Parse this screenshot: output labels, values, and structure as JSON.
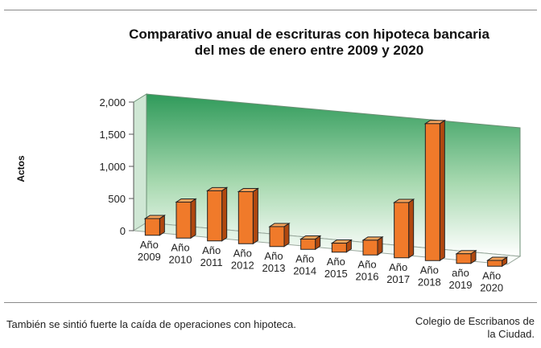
{
  "chart_data": {
    "type": "bar",
    "title_lines": [
      "Comparativo anual de escrituras con hipoteca bancaria",
      "del mes de enero entre 2009 y 2020"
    ],
    "ylabel": "Actos",
    "xlabel": "",
    "ylim": [
      0,
      2000
    ],
    "yticks": [
      "0",
      "500",
      "1,000",
      "1,500",
      "2,000"
    ],
    "ytick_values": [
      0,
      500,
      1000,
      1500,
      2000
    ],
    "categories": [
      [
        "Año",
        "2009"
      ],
      [
        "Año",
        "2010"
      ],
      [
        "Año",
        "2011"
      ],
      [
        "Año",
        "2012"
      ],
      [
        "Año",
        "2013"
      ],
      [
        "Año",
        "2014"
      ],
      [
        "Año",
        "2015"
      ],
      [
        "Año",
        "2016"
      ],
      [
        "Año",
        "2017"
      ],
      [
        "Año",
        "2018"
      ],
      [
        "año",
        "2019"
      ],
      [
        "Año",
        "2020"
      ]
    ],
    "values": [
      260,
      560,
      780,
      810,
      310,
      160,
      140,
      230,
      860,
      2130,
      150,
      90
    ],
    "grid": false,
    "colors": {
      "bar_front": "#f07a2a",
      "bar_side": "#b0480f",
      "bar_top": "#f7a45c",
      "wall_top": "#2f9a5a",
      "wall_bottom": "#ffffff"
    }
  },
  "caption": "También se sintió fuerte la caída de operaciones con hipoteca.",
  "credit_lines": [
    "Colegio de Escribanos de",
    "la Ciudad."
  ]
}
